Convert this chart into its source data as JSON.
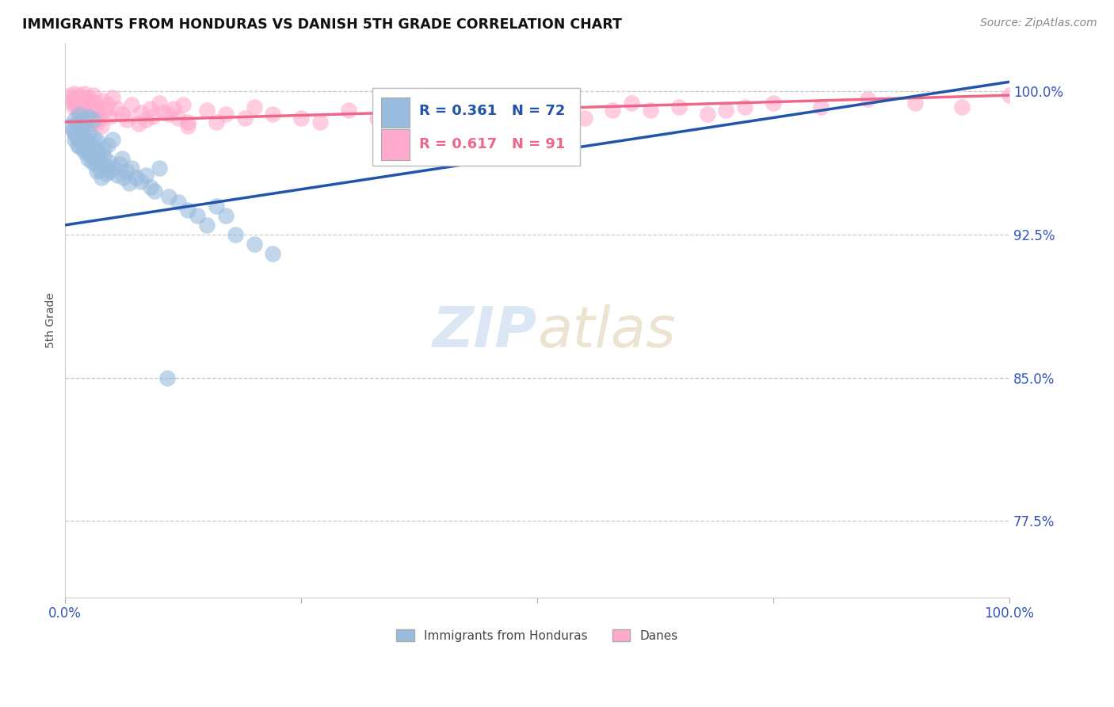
{
  "title": "IMMIGRANTS FROM HONDURAS VS DANISH 5TH GRADE CORRELATION CHART",
  "source_text": "Source: ZipAtlas.com",
  "ylabel": "5th Grade",
  "y_ticks": [
    0.775,
    0.85,
    0.925,
    1.0
  ],
  "y_tick_labels": [
    "77.5%",
    "85.0%",
    "92.5%",
    "100.0%"
  ],
  "xlim": [
    0.0,
    1.0
  ],
  "ylim": [
    0.735,
    1.025
  ],
  "r_blue": "0.361",
  "n_blue": "72",
  "r_pink": "0.617",
  "n_pink": "91",
  "blue_color": "#99BBDD",
  "pink_color": "#FFAACC",
  "trend_blue": "#2255AA",
  "trend_pink": "#EE6688",
  "legend_label_blue": "Immigrants from Honduras",
  "legend_label_pink": "Danes",
  "watermark_zip": "ZIP",
  "watermark_atlas": "atlas",
  "blue_scatter_x": [
    0.005,
    0.008,
    0.01,
    0.01,
    0.01,
    0.012,
    0.012,
    0.013,
    0.015,
    0.015,
    0.015,
    0.016,
    0.018,
    0.018,
    0.019,
    0.02,
    0.02,
    0.021,
    0.022,
    0.022,
    0.023,
    0.024,
    0.025,
    0.025,
    0.026,
    0.027,
    0.028,
    0.029,
    0.03,
    0.03,
    0.031,
    0.032,
    0.033,
    0.034,
    0.035,
    0.036,
    0.037,
    0.038,
    0.04,
    0.041,
    0.042,
    0.043,
    0.045,
    0.046,
    0.048,
    0.05,
    0.052,
    0.055,
    0.058,
    0.06,
    0.062,
    0.065,
    0.068,
    0.07,
    0.075,
    0.08,
    0.085,
    0.09,
    0.095,
    0.1,
    0.11,
    0.12,
    0.13,
    0.14,
    0.15,
    0.16,
    0.17,
    0.18,
    0.2,
    0.22,
    0.38,
    0.108
  ],
  "blue_scatter_y": [
    0.982,
    0.98,
    0.985,
    0.978,
    0.975,
    0.983,
    0.976,
    0.972,
    0.988,
    0.979,
    0.971,
    0.974,
    0.981,
    0.977,
    0.97,
    0.986,
    0.973,
    0.968,
    0.984,
    0.975,
    0.969,
    0.965,
    0.987,
    0.978,
    0.972,
    0.967,
    0.963,
    0.971,
    0.985,
    0.976,
    0.966,
    0.962,
    0.958,
    0.974,
    0.968,
    0.964,
    0.959,
    0.955,
    0.97,
    0.966,
    0.961,
    0.957,
    0.972,
    0.963,
    0.958,
    0.975,
    0.96,
    0.956,
    0.962,
    0.965,
    0.955,
    0.958,
    0.952,
    0.96,
    0.955,
    0.953,
    0.956,
    0.95,
    0.948,
    0.96,
    0.945,
    0.942,
    0.938,
    0.935,
    0.93,
    0.94,
    0.935,
    0.925,
    0.92,
    0.915,
    0.99,
    0.85
  ],
  "pink_scatter_x": [
    0.005,
    0.007,
    0.008,
    0.009,
    0.01,
    0.01,
    0.011,
    0.012,
    0.013,
    0.014,
    0.015,
    0.015,
    0.016,
    0.017,
    0.018,
    0.018,
    0.019,
    0.02,
    0.021,
    0.022,
    0.023,
    0.024,
    0.025,
    0.025,
    0.026,
    0.027,
    0.028,
    0.029,
    0.03,
    0.031,
    0.032,
    0.033,
    0.034,
    0.035,
    0.036,
    0.037,
    0.038,
    0.04,
    0.042,
    0.045,
    0.048,
    0.05,
    0.055,
    0.06,
    0.065,
    0.07,
    0.08,
    0.09,
    0.1,
    0.11,
    0.12,
    0.13,
    0.15,
    0.17,
    0.2,
    0.25,
    0.3,
    0.35,
    0.4,
    0.45,
    0.5,
    0.55,
    0.6,
    0.65,
    0.7,
    0.75,
    0.8,
    0.85,
    0.9,
    0.95,
    1.0,
    0.62,
    0.68,
    0.72,
    0.13,
    0.16,
    0.19,
    0.22,
    0.27,
    0.33,
    0.38,
    0.43,
    0.48,
    0.53,
    0.58,
    0.078,
    0.085,
    0.093,
    0.105,
    0.115,
    0.125
  ],
  "pink_scatter_y": [
    0.998,
    0.996,
    0.994,
    0.992,
    0.999,
    0.995,
    0.993,
    0.997,
    0.991,
    0.989,
    0.998,
    0.994,
    0.992,
    0.996,
    0.99,
    0.988,
    0.986,
    0.999,
    0.993,
    0.991,
    0.995,
    0.989,
    0.997,
    0.993,
    0.987,
    0.985,
    0.983,
    0.991,
    0.998,
    0.994,
    0.988,
    0.986,
    0.984,
    0.992,
    0.988,
    0.986,
    0.982,
    0.995,
    0.99,
    0.993,
    0.987,
    0.997,
    0.991,
    0.988,
    0.985,
    0.993,
    0.989,
    0.991,
    0.994,
    0.988,
    0.986,
    0.984,
    0.99,
    0.988,
    0.992,
    0.986,
    0.99,
    0.988,
    0.992,
    0.99,
    0.988,
    0.986,
    0.994,
    0.992,
    0.99,
    0.994,
    0.992,
    0.996,
    0.994,
    0.992,
    0.998,
    0.99,
    0.988,
    0.992,
    0.982,
    0.984,
    0.986,
    0.988,
    0.984,
    0.986,
    0.988,
    0.99,
    0.986,
    0.988,
    0.99,
    0.983,
    0.985,
    0.987,
    0.989,
    0.991,
    0.993
  ],
  "blue_trendline_x": [
    0.0,
    1.0
  ],
  "blue_trendline_y": [
    0.93,
    1.005
  ],
  "pink_trendline_x": [
    0.0,
    1.0
  ],
  "pink_trendline_y": [
    0.984,
    0.998
  ]
}
